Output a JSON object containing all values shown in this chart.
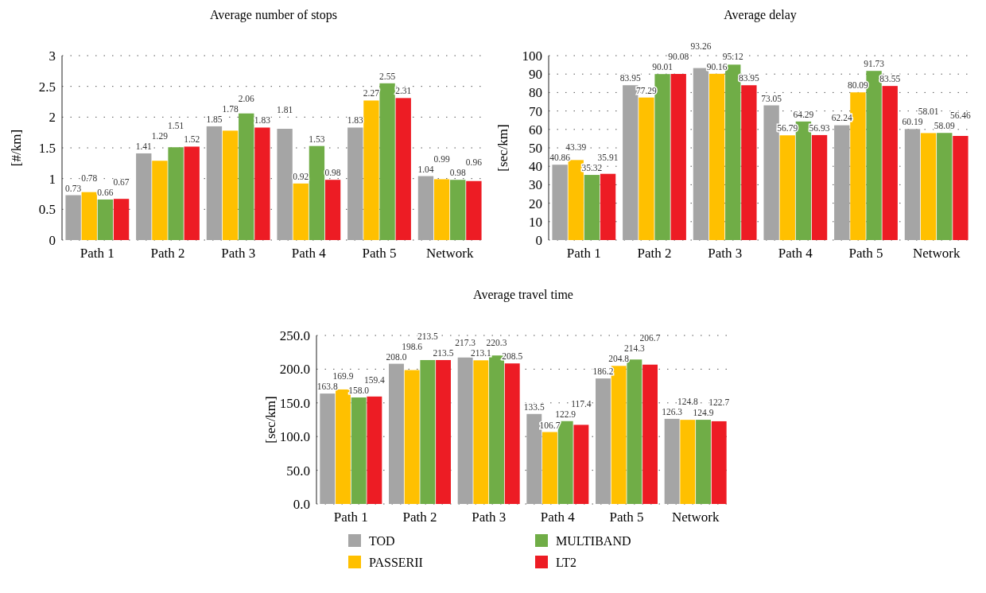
{
  "chart_data": [
    {
      "type": "bar",
      "title": "Average number of stops",
      "ylabel": "[#/km]",
      "categories": [
        "Path 1",
        "Path 2",
        "Path 3",
        "Path 4",
        "Path 5",
        "Network"
      ],
      "ylim": [
        0,
        3
      ],
      "yticks": [
        0,
        0.5,
        1,
        1.5,
        2,
        2.5,
        3
      ],
      "grid": "y",
      "data_labels": true,
      "series": [
        {
          "color": "#a5a5a5",
          "values": [
            0.73,
            1.41,
            1.85,
            1.81,
            1.83,
            1.04
          ]
        },
        {
          "color": "#ffc000",
          "values": [
            0.78,
            1.29,
            1.78,
            0.92,
            2.27,
            0.99
          ]
        },
        {
          "color": "#70ad47",
          "values": [
            0.66,
            1.51,
            2.06,
            1.53,
            2.55,
            0.98
          ]
        },
        {
          "color": "#ed1c24",
          "values": [
            0.67,
            1.52,
            1.83,
            0.98,
            2.31,
            0.96
          ]
        }
      ]
    },
    {
      "type": "bar",
      "title": "Average delay",
      "ylabel": "[sec/km]",
      "categories": [
        "Path 1",
        "Path 2",
        "Path 3",
        "Path 4",
        "Path 5",
        "Network"
      ],
      "ylim": [
        0,
        100
      ],
      "yticks": [
        0,
        10,
        20,
        30,
        40,
        50,
        60,
        70,
        80,
        90,
        100
      ],
      "grid": "y",
      "data_labels": true,
      "series": [
        {
          "color": "#a5a5a5",
          "values": [
            40.86,
            83.95,
            93.26,
            73.05,
            62.24,
            60.19
          ]
        },
        {
          "color": "#ffc000",
          "values": [
            43.39,
            77.29,
            90.16,
            56.79,
            80.09,
            58.01
          ]
        },
        {
          "color": "#70ad47",
          "values": [
            35.32,
            90.01,
            95.12,
            64.29,
            91.73,
            58.09
          ]
        },
        {
          "color": "#ed1c24",
          "values": [
            35.91,
            90.08,
            83.95,
            56.93,
            83.55,
            56.46
          ]
        }
      ]
    },
    {
      "type": "bar",
      "title": "Average travel time",
      "ylabel": "[sec/km]",
      "categories": [
        "Path 1",
        "Path 2",
        "Path 3",
        "Path 4",
        "Path 5",
        "Network"
      ],
      "ylim": [
        0,
        250
      ],
      "yticks": [
        {
          "value": 0,
          "label": "0.0"
        },
        {
          "value": 50,
          "label": "50.0"
        },
        {
          "value": 100,
          "label": "100.0"
        },
        {
          "value": 150,
          "label": "150.0"
        },
        {
          "value": 200,
          "label": "200.0"
        },
        {
          "value": 250,
          "label": "250.0"
        }
      ],
      "grid": "y",
      "legend": "bottom",
      "series": [
        {
          "name": "TOD",
          "color": "#a5a5a5",
          "values": [
            163.8,
            208.0,
            217.3,
            133.5,
            186.2,
            126.3
          ],
          "value_labels": [
            "163.8",
            "208.0",
            "217.3",
            "133.5",
            "186.2",
            "126.3"
          ]
        },
        {
          "name": "PASSERII",
          "color": "#ffc000",
          "values": [
            169.9,
            198.6,
            213.1,
            106.7,
            204.8,
            124.8
          ],
          "value_labels": [
            "169.9",
            "198.6",
            "213.1",
            "106.7",
            "204.8",
            "124.8"
          ]
        },
        {
          "name": "MULTIBAND",
          "color": "#70ad47",
          "values": [
            158.0,
            213.5,
            220.3,
            122.9,
            214.3,
            124.9
          ],
          "value_labels": [
            "158.0",
            "213.5",
            "220.3",
            "122.9",
            "214.3",
            "124.9"
          ]
        },
        {
          "name": "LT2",
          "color": "#ed1c24",
          "values": [
            159.4,
            213.5,
            208.5,
            117.4,
            206.7,
            122.7
          ],
          "value_labels": [
            "159.4",
            "213.5",
            "208.5",
            "117.4",
            "206.7",
            "122.7"
          ]
        }
      ]
    }
  ]
}
